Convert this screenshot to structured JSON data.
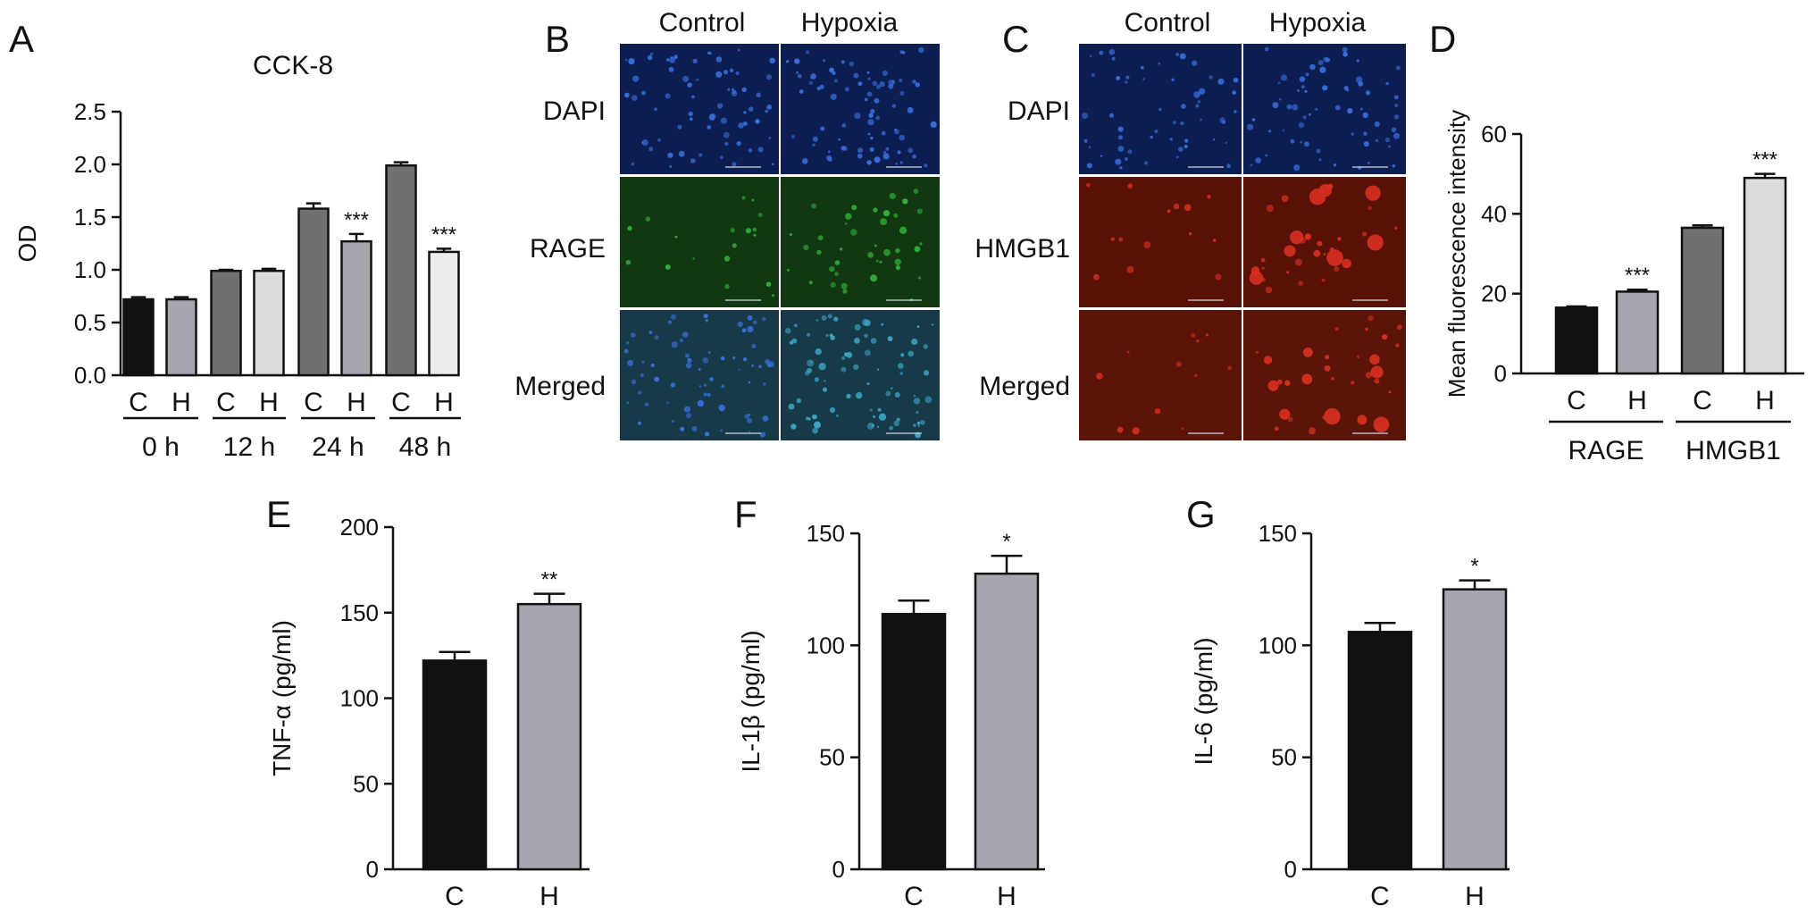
{
  "panels": {
    "a": {
      "letter": "A"
    },
    "b": {
      "letter": "B",
      "col_labels": [
        "Control",
        "Hypoxia"
      ],
      "row_labels": [
        "DAPI",
        "RAGE",
        "Merged"
      ]
    },
    "c": {
      "letter": "C",
      "col_labels": [
        "Control",
        "Hypoxia"
      ],
      "row_labels": [
        "DAPI",
        "HMGB1",
        "Merged"
      ]
    },
    "d": {
      "letter": "D"
    },
    "e": {
      "letter": "E"
    },
    "f": {
      "letter": "F"
    },
    "g": {
      "letter": "G"
    }
  },
  "colors": {
    "control": "#111111",
    "hypoxia": "#a6a6ae",
    "dark_gray": "#707070",
    "light_gray": "#dcdcdc",
    "dapi_bg": "#0d1f52",
    "dapi_nuclei": "#3a6fe0",
    "rage_bg": "#123812",
    "rage_signal": "#2fb03a",
    "merged_rage_bg": "#163a48",
    "hmgb1_bg": "#5a1208",
    "hmgb1_signal": "#d83020",
    "merged_hmgb1_bg": "#5c1408"
  },
  "chart_data": [
    {
      "id": "A",
      "type": "bar",
      "title": "CCK-8",
      "ylabel": "OD",
      "ylim": [
        0,
        2.5
      ],
      "yticks": [
        "0.0",
        "0.5",
        "1.0",
        "1.5",
        "2.0",
        "2.5"
      ],
      "categories": [
        "C",
        "H",
        "C",
        "H",
        "C",
        "H",
        "C",
        "H"
      ],
      "groups": [
        "0 h",
        "12 h",
        "24 h",
        "48 h"
      ],
      "values": [
        0.72,
        0.72,
        0.99,
        0.99,
        1.58,
        1.27,
        1.99,
        1.17
      ],
      "errors": [
        0.02,
        0.02,
        0.01,
        0.02,
        0.05,
        0.07,
        0.03,
        0.03
      ],
      "significance": [
        "",
        "",
        "",
        "",
        "",
        "***",
        "",
        "***"
      ],
      "bar_colors": [
        "#111111",
        "#a6a6ae",
        "#707070",
        "#dcdcdc",
        "#707070",
        "#a6a6ae",
        "#707070",
        "#ececec"
      ]
    },
    {
      "id": "D",
      "type": "bar",
      "title": "",
      "ylabel": "Mean fluorescence intensity",
      "ylim": [
        0,
        60
      ],
      "yticks": [
        "0",
        "20",
        "40",
        "60"
      ],
      "categories": [
        "C",
        "H",
        "C",
        "H"
      ],
      "groups": [
        "RAGE",
        "HMGB1"
      ],
      "values": [
        16.5,
        20.5,
        36.5,
        49
      ],
      "errors": [
        0.3,
        0.5,
        0.6,
        1.0
      ],
      "significance": [
        "",
        "***",
        "",
        "***"
      ],
      "bar_colors": [
        "#111111",
        "#a6a6ae",
        "#707070",
        "#dcdcdc"
      ]
    },
    {
      "id": "E",
      "type": "bar",
      "title": "",
      "ylabel": "TNF-α (pg/ml)",
      "ylim": [
        0,
        200
      ],
      "yticks": [
        "0",
        "50",
        "100",
        "150",
        "200"
      ],
      "categories": [
        "C",
        "H"
      ],
      "values": [
        122,
        155
      ],
      "errors": [
        5,
        6
      ],
      "significance": [
        "",
        "**"
      ],
      "bar_colors": [
        "#111111",
        "#a6a6ae"
      ]
    },
    {
      "id": "F",
      "type": "bar",
      "title": "",
      "ylabel": "IL-1β (pg/ml)",
      "ylim": [
        0,
        150
      ],
      "yticks": [
        "0",
        "50",
        "100",
        "150"
      ],
      "categories": [
        "C",
        "H"
      ],
      "values": [
        114,
        132
      ],
      "errors": [
        6,
        8
      ],
      "significance": [
        "",
        "*"
      ],
      "bar_colors": [
        "#111111",
        "#a6a6ae"
      ]
    },
    {
      "id": "G",
      "type": "bar",
      "title": "",
      "ylabel": "IL-6 (pg/ml)",
      "ylim": [
        0,
        150
      ],
      "yticks": [
        "0",
        "50",
        "100",
        "150"
      ],
      "categories": [
        "C",
        "H"
      ],
      "values": [
        106,
        125
      ],
      "errors": [
        4,
        4
      ],
      "significance": [
        "",
        "*"
      ],
      "bar_colors": [
        "#111111",
        "#a6a6ae"
      ]
    }
  ]
}
